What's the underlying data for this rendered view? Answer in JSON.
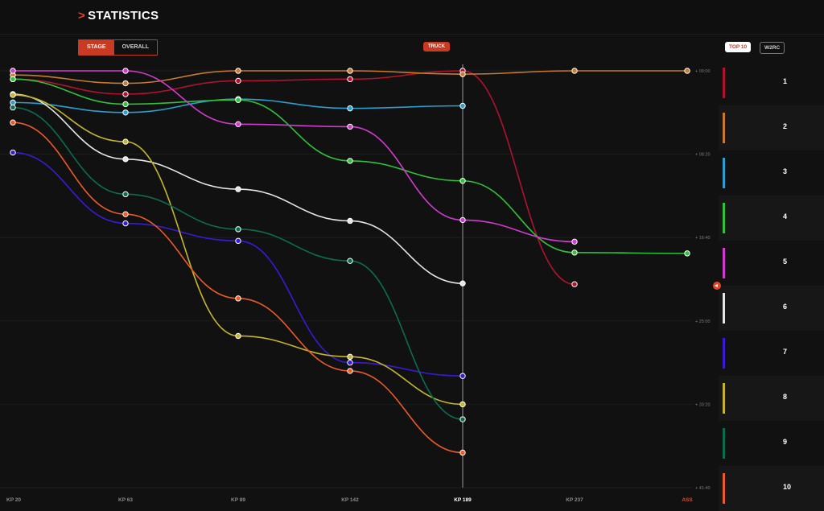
{
  "header": {
    "arrow": ">",
    "title": "STATISTICS"
  },
  "toggle": {
    "stage": "STAGE",
    "overall": "OVERALL",
    "active": "stage"
  },
  "badge": {
    "truck": "TRUCK"
  },
  "filters": {
    "top10": "TOP 10",
    "w2rc": "W2RC",
    "active": "top10"
  },
  "chart_data": {
    "type": "line",
    "categories": [
      "KP 20",
      "KP 63",
      "KP 89",
      "KP 142",
      "KP 189",
      "KP 237",
      "ASS"
    ],
    "highlight_category": "KP 189",
    "final_category": "ASS",
    "y_ticks": [
      "+ 00:00",
      "+ 08:20",
      "+ 16:40",
      "+ 25:00",
      "+ 33:20",
      "+ 41:40"
    ],
    "y_tick_seconds": [
      0,
      500,
      1000,
      1500,
      2000,
      2500
    ],
    "y_inverted": true,
    "ylim": [
      0,
      2500
    ],
    "grid": "horizontal",
    "series": [
      {
        "name": "1",
        "color": "#b0122e",
        "values": [
          50,
          140,
          60,
          50,
          0,
          1280,
          null
        ]
      },
      {
        "name": "2",
        "color": "#c97a2c",
        "values": [
          25,
          75,
          0,
          0,
          20,
          0,
          0
        ]
      },
      {
        "name": "3",
        "color": "#2a9fd0",
        "values": [
          190,
          250,
          170,
          225,
          210,
          null,
          null
        ]
      },
      {
        "name": "4",
        "color": "#2fc23a",
        "values": [
          50,
          200,
          175,
          540,
          660,
          1090,
          1095
        ]
      },
      {
        "name": "5",
        "color": "#d23ad0",
        "values": [
          0,
          0,
          320,
          335,
          895,
          1025,
          null
        ]
      },
      {
        "name": "6",
        "color": "#e6e6e6",
        "values": [
          140,
          530,
          710,
          900,
          1275,
          null,
          null
        ]
      },
      {
        "name": "7",
        "color": "#3a1ad6",
        "values": [
          490,
          915,
          1020,
          1750,
          1830,
          null,
          null
        ]
      },
      {
        "name": "8",
        "color": "#c4b52a",
        "values": [
          145,
          425,
          1590,
          1715,
          2000,
          null,
          null
        ]
      },
      {
        "name": "9",
        "color": "#0a6e4e",
        "values": [
          220,
          740,
          950,
          1140,
          2090,
          null,
          null
        ]
      },
      {
        "name": "10",
        "color": "#ec5a28",
        "values": [
          310,
          860,
          1365,
          1800,
          2290,
          null,
          null
        ]
      }
    ]
  }
}
